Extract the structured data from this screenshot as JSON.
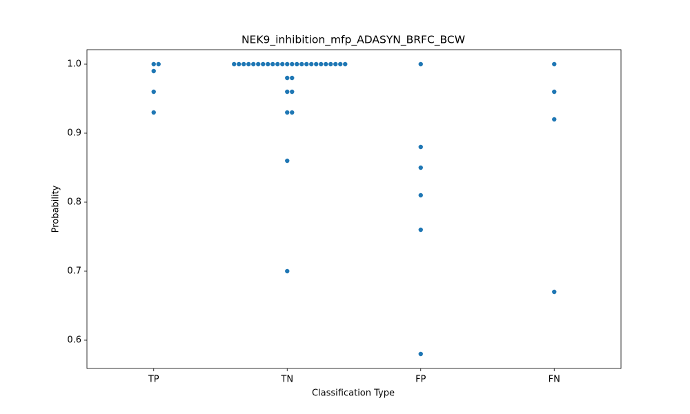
{
  "chart_data": {
    "type": "swarm",
    "title": "NEK9_inhibition_mfp_ADASYN_BRFC_BCW",
    "x_label": "Classification Type",
    "y_label": "Probability",
    "categories": [
      "TP",
      "TN",
      "FP",
      "FN"
    ],
    "color": "#1f77b4",
    "values": [
      [
        1.0,
        1.0,
        0.99,
        0.96,
        0.93
      ],
      [
        1.0,
        1.0,
        1.0,
        1.0,
        1.0,
        1.0,
        1.0,
        1.0,
        1.0,
        1.0,
        1.0,
        1.0,
        1.0,
        1.0,
        1.0,
        1.0,
        1.0,
        1.0,
        1.0,
        1.0,
        1.0,
        1.0,
        1.0,
        1.0,
        0.98,
        0.98,
        0.96,
        0.96,
        0.93,
        0.93,
        0.86,
        0.7
      ],
      [
        1.0,
        0.88,
        0.85,
        0.81,
        0.76,
        0.58
      ],
      [
        1.0,
        0.96,
        0.92,
        0.67
      ]
    ],
    "ylim": [
      0.559,
      1.021
    ],
    "yticks": [
      0.6,
      0.7,
      0.8,
      0.9,
      {
        "value": 1.0,
        "label": "1.0"
      }
    ],
    "grid": false
  }
}
